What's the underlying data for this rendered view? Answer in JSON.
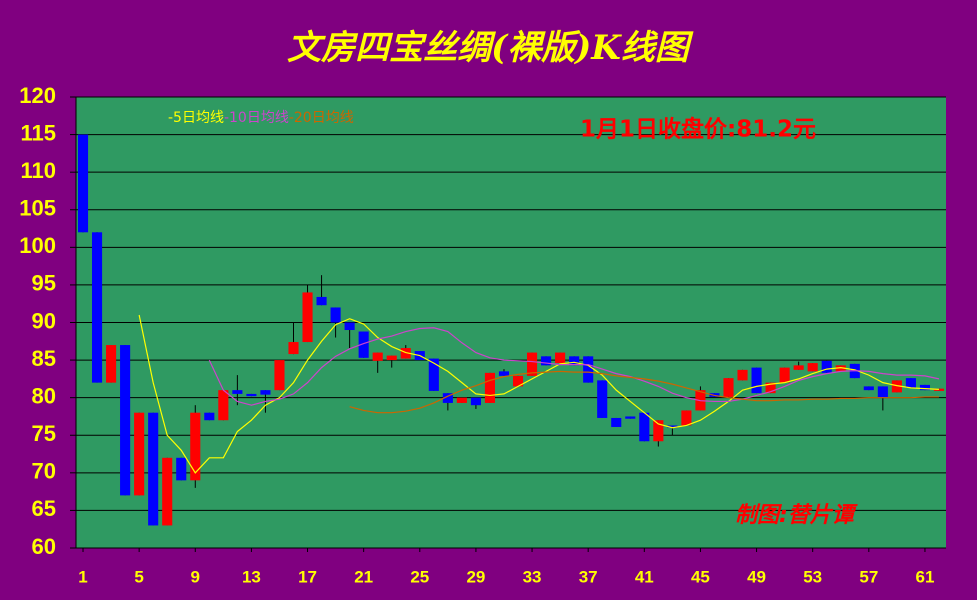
{
  "chart_data": {
    "type": "candlestick",
    "title": "文房四宝丝绸(裸版)K线图",
    "annotation": "1月1日收盘价:81.2元",
    "credit": "制图:替片谭",
    "up_color": "#ff0000",
    "down_color": "#0000ff",
    "grid": true,
    "x": [
      1,
      2,
      3,
      4,
      5,
      6,
      7,
      8,
      9,
      10,
      11,
      12,
      13,
      14,
      15,
      16,
      17,
      18,
      19,
      20,
      21,
      22,
      23,
      24,
      25,
      26,
      27,
      28,
      29,
      30,
      31,
      32,
      33,
      34,
      35,
      36,
      37,
      38,
      39,
      40,
      41,
      42,
      43,
      44,
      45,
      46,
      47,
      48,
      49,
      50,
      51,
      52,
      53,
      54,
      55,
      56,
      57,
      58,
      59,
      60,
      61,
      62
    ],
    "xlim": [
      0.5,
      62.5
    ],
    "xticks": [
      1,
      5,
      9,
      13,
      17,
      21,
      25,
      29,
      33,
      37,
      41,
      45,
      49,
      53,
      57,
      61
    ],
    "ylim": [
      60,
      120
    ],
    "yticks": [
      60,
      65,
      70,
      75,
      80,
      85,
      90,
      95,
      100,
      105,
      110,
      115,
      120
    ],
    "open": [
      115,
      102,
      82,
      87,
      67,
      78,
      63,
      72,
      69,
      78,
      77,
      81,
      80.5,
      81,
      81,
      85.8,
      87.4,
      93.4,
      92,
      90,
      88.8,
      84.9,
      85,
      85.2,
      86.2,
      85.2,
      80.6,
      79.3,
      80,
      79.3,
      83.5,
      81.5,
      82.9,
      85.5,
      84.6,
      85.5,
      85.5,
      82.3,
      77.3,
      77.5,
      78,
      74.2,
      76.3,
      76.3,
      78.3,
      80.6,
      80.1,
      82.3,
      84,
      80.6,
      82,
      83.7,
      83.5,
      84.9,
      83.5,
      84.5,
      81.5,
      81.5,
      80.7,
      82.6,
      81.7,
      80.9
    ],
    "high": [
      115,
      102,
      87,
      87,
      78,
      78,
      72,
      72,
      79,
      78,
      81,
      83,
      80.5,
      81,
      85,
      90,
      95,
      96.3,
      92,
      90,
      88.8,
      86,
      85.6,
      87,
      86.2,
      85.2,
      80.6,
      80,
      80,
      83.3,
      83.8,
      82.9,
      86,
      85.5,
      86,
      85.5,
      85.5,
      82.3,
      77.3,
      77.5,
      78,
      77,
      76.3,
      78.3,
      81.5,
      80.6,
      82.6,
      83.7,
      84,
      82,
      84,
      84.8,
      84.6,
      84.9,
      84.3,
      84.5,
      81.5,
      81.5,
      82.3,
      82.6,
      81.7,
      81.2
    ],
    "low": [
      102,
      82,
      82,
      67,
      67,
      63,
      63,
      69,
      68,
      77,
      77,
      79,
      80.2,
      78,
      81,
      85.8,
      87.4,
      92.3,
      88,
      86.6,
      85.3,
      83.3,
      84,
      85.2,
      85,
      80.9,
      78.3,
      79.3,
      78.5,
      79.3,
      82.9,
      81.5,
      82.9,
      84.3,
      84.6,
      84.3,
      82,
      77.3,
      76.1,
      77.2,
      74.2,
      73.5,
      75,
      76.3,
      78.3,
      80.1,
      80.1,
      82.3,
      80.6,
      80.6,
      82,
      83.7,
      83.5,
      83.3,
      83.5,
      82.6,
      81,
      78.3,
      80.7,
      81.3,
      81,
      80.9
    ],
    "close": [
      102,
      82,
      87,
      67,
      78,
      63,
      72,
      69,
      78,
      77,
      81,
      80.5,
      80.2,
      80.4,
      85,
      87.4,
      94,
      92.3,
      90,
      89,
      85.3,
      86,
      85.6,
      86.6,
      85,
      80.9,
      79.3,
      80,
      79,
      83.3,
      82.9,
      82.9,
      86,
      84.3,
      86,
      84.3,
      82,
      77.3,
      76.1,
      77.2,
      74.2,
      77,
      76,
      78.3,
      81,
      80.1,
      82.6,
      83.7,
      80.6,
      82,
      84,
      84.3,
      84.6,
      83.3,
      84.3,
      82.6,
      81,
      80,
      82.3,
      81.3,
      81,
      81.2
    ],
    "series": [
      {
        "name": "-5日均线",
        "color": "#ffff00",
        "values": [
          null,
          null,
          null,
          null,
          91,
          82,
          75,
          73,
          70,
          72,
          72,
          75.5,
          77,
          79,
          80,
          82,
          85,
          87.5,
          89.7,
          90.5,
          89.8,
          88,
          86.8,
          86,
          85.6,
          84.6,
          83.5,
          82,
          80.5,
          80.3,
          80.5,
          81.5,
          82.5,
          83.5,
          84.5,
          84.7,
          84.3,
          83,
          81,
          79.5,
          78,
          76.5,
          76,
          76.3,
          77,
          78.2,
          79.5,
          81,
          81.5,
          81.8,
          82,
          82.5,
          83.2,
          83.8,
          84,
          83.7,
          83,
          82,
          81.6,
          81.3,
          81.2,
          81.1
        ]
      },
      {
        "name": "-10日均线",
        "color": "#cc44cc",
        "values": [
          null,
          null,
          null,
          null,
          null,
          null,
          null,
          null,
          null,
          85,
          81,
          79.5,
          79,
          79.5,
          79.8,
          80.5,
          82,
          84,
          85.5,
          86.5,
          87.2,
          87.8,
          88.2,
          88.8,
          89.2,
          89.3,
          88.8,
          87.3,
          86,
          85.3,
          85,
          84.9,
          84.8,
          84.6,
          84.4,
          84.4,
          84.4,
          83.8,
          83.2,
          82.8,
          82.2,
          81.5,
          80.6,
          80,
          79.6,
          79.5,
          79.5,
          79.8,
          80.3,
          80.8,
          81.5,
          82.3,
          82.8,
          83.2,
          83.5,
          83.6,
          83.5,
          83.2,
          83,
          83,
          82.9,
          82.5
        ]
      },
      {
        "name": "-20日均线",
        "color": "#cc6600",
        "values": [
          null,
          null,
          null,
          null,
          null,
          null,
          null,
          null,
          null,
          null,
          null,
          null,
          null,
          null,
          null,
          null,
          null,
          null,
          null,
          78.8,
          78.3,
          78,
          78,
          78.2,
          78.6,
          79.3,
          80.2,
          81,
          81.6,
          82.3,
          82.8,
          83.1,
          83.3,
          83.4,
          83.5,
          83.4,
          83.4,
          83.2,
          82.9,
          82.7,
          82.5,
          82.2,
          81.8,
          81.3,
          80.8,
          80.3,
          80,
          79.8,
          79.6,
          79.6,
          79.7,
          79.7,
          79.8,
          79.8,
          79.9,
          79.9,
          80,
          80,
          80,
          80,
          80.1,
          80.1
        ]
      }
    ]
  }
}
